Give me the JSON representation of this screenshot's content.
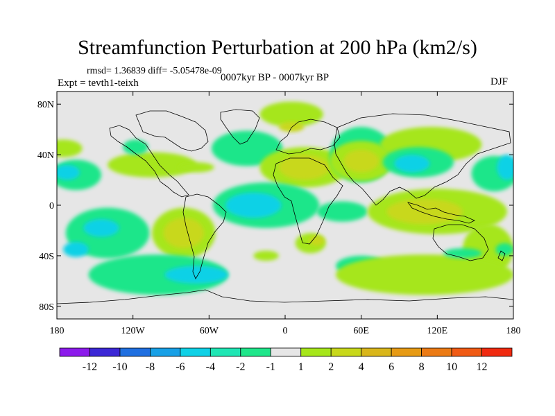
{
  "header": {
    "title": "Streamfunction Perturbation at 200 hPa (km2/s)",
    "stats": "rmsd= 1.36839 diff= -5.05478e-09",
    "experiment": "Expt = tevth1-teixh",
    "period": "0007kyr BP - 0007kyr BP",
    "season": "DJF"
  },
  "chart_data": {
    "type": "heatmap",
    "title": "Streamfunction Perturbation at 200 hPa (km2/s)",
    "subtitle": "0007kyr BP - 0007kyr BP",
    "variable": "Streamfunction Perturbation",
    "units": "km2/s",
    "level": "200 hPa",
    "xlabel": "",
    "ylabel": "",
    "xlim": [
      -180,
      180
    ],
    "ylim": [
      -90,
      90
    ],
    "x_ticks": [
      {
        "value": -180,
        "label": "180"
      },
      {
        "value": -120,
        "label": "120W"
      },
      {
        "value": -60,
        "label": "60W"
      },
      {
        "value": 0,
        "label": "0"
      },
      {
        "value": 60,
        "label": "60E"
      },
      {
        "value": 120,
        "label": "120E"
      },
      {
        "value": 180,
        "label": "180"
      }
    ],
    "y_ticks": [
      {
        "value": 80,
        "label": "80N"
      },
      {
        "value": 40,
        "label": "40N"
      },
      {
        "value": 0,
        "label": "0"
      },
      {
        "value": -40,
        "label": "40S"
      },
      {
        "value": -80,
        "label": "80S"
      }
    ],
    "colorbar": {
      "bins": [
        {
          "color": "#8c1aeb"
        },
        {
          "color": "#3c27d6"
        },
        {
          "color": "#1f6fe0"
        },
        {
          "color": "#17a0e6"
        },
        {
          "color": "#0fd1e6"
        },
        {
          "color": "#1fe6b4"
        },
        {
          "color": "#1fe68a"
        },
        {
          "color": "#e6e6e6"
        },
        {
          "color": "#a6e61a"
        },
        {
          "color": "#c8d81a"
        },
        {
          "color": "#d9b61a"
        },
        {
          "color": "#e69a14"
        },
        {
          "color": "#eb7a14"
        },
        {
          "color": "#f05a14"
        },
        {
          "color": "#f02a10"
        }
      ],
      "boundaries": [
        "-12",
        "-10",
        "-8",
        "-6",
        "-4",
        "-2",
        "-1",
        "1",
        "2",
        "4",
        "6",
        "8",
        "10",
        "12"
      ]
    },
    "regions": [
      {
        "lon": -105,
        "lat": 32,
        "rx": 35,
        "ry": 10,
        "level": 2
      },
      {
        "lon": -30,
        "lat": 45,
        "rx": 28,
        "ry": 14,
        "level": -1
      },
      {
        "lon": -165,
        "lat": 24,
        "rx": 20,
        "ry": 12,
        "level": -1
      },
      {
        "lon": -172,
        "lat": 26,
        "rx": 10,
        "ry": 6,
        "level": -2
      },
      {
        "lon": -175,
        "lat": 45,
        "rx": 15,
        "ry": 7,
        "level": 2
      },
      {
        "lon": -118,
        "lat": 46,
        "rx": 10,
        "ry": 6,
        "level": -1
      },
      {
        "lon": -70,
        "lat": 30,
        "rx": 14,
        "ry": 4,
        "level": 2
      },
      {
        "lon": 5,
        "lat": 72,
        "rx": 25,
        "ry": 10,
        "level": 2
      },
      {
        "lon": 5,
        "lat": 62,
        "rx": 10,
        "ry": 4,
        "level": 4
      },
      {
        "lon": 15,
        "lat": 30,
        "rx": 35,
        "ry": 16,
        "level": 2
      },
      {
        "lon": 15,
        "lat": 30,
        "rx": 20,
        "ry": 10,
        "level": 4
      },
      {
        "lon": 60,
        "lat": 40,
        "rx": 25,
        "ry": 22,
        "level": -1
      },
      {
        "lon": 60,
        "lat": 35,
        "rx": 25,
        "ry": 16,
        "level": 2
      },
      {
        "lon": 60,
        "lat": 35,
        "rx": 14,
        "ry": 9,
        "level": 4
      },
      {
        "lon": 115,
        "lat": 48,
        "rx": 40,
        "ry": 14,
        "level": 2
      },
      {
        "lon": 105,
        "lat": 34,
        "rx": 28,
        "ry": 12,
        "level": -1
      },
      {
        "lon": 100,
        "lat": 33,
        "rx": 14,
        "ry": 7,
        "level": -2
      },
      {
        "lon": 165,
        "lat": 25,
        "rx": 18,
        "ry": 14,
        "level": -1
      },
      {
        "lon": 175,
        "lat": 30,
        "rx": 8,
        "ry": 10,
        "level": -2
      },
      {
        "lon": -15,
        "lat": 0,
        "rx": 42,
        "ry": 18,
        "level": -1
      },
      {
        "lon": -25,
        "lat": 0,
        "rx": 22,
        "ry": 10,
        "level": -2
      },
      {
        "lon": 45,
        "lat": -5,
        "rx": 20,
        "ry": 8,
        "level": -1
      },
      {
        "lon": 120,
        "lat": -5,
        "rx": 55,
        "ry": 18,
        "level": 2
      },
      {
        "lon": 110,
        "lat": -5,
        "rx": 30,
        "ry": 10,
        "level": 4
      },
      {
        "lon": 160,
        "lat": -35,
        "rx": 20,
        "ry": 20,
        "level": 2
      },
      {
        "lon": -140,
        "lat": -22,
        "rx": 33,
        "ry": 20,
        "level": -1
      },
      {
        "lon": -145,
        "lat": -18,
        "rx": 14,
        "ry": 7,
        "level": -2
      },
      {
        "lon": -165,
        "lat": -35,
        "rx": 10,
        "ry": 6,
        "level": -2
      },
      {
        "lon": -80,
        "lat": -22,
        "rx": 25,
        "ry": 20,
        "level": 2
      },
      {
        "lon": -80,
        "lat": -22,
        "rx": 16,
        "ry": 12,
        "level": 4
      },
      {
        "lon": -100,
        "lat": -55,
        "rx": 55,
        "ry": 16,
        "level": -1
      },
      {
        "lon": -70,
        "lat": -55,
        "rx": 25,
        "ry": 7,
        "level": -2
      },
      {
        "lon": -15,
        "lat": -40,
        "rx": 10,
        "ry": 4,
        "level": 2
      },
      {
        "lon": 20,
        "lat": -30,
        "rx": 12,
        "ry": 8,
        "level": 2
      },
      {
        "lon": 25,
        "lat": -28,
        "rx": 6,
        "ry": 4,
        "level": 4
      },
      {
        "lon": 60,
        "lat": -48,
        "rx": 20,
        "ry": 8,
        "level": -1
      },
      {
        "lon": 110,
        "lat": -55,
        "rx": 70,
        "ry": 16,
        "level": 2
      },
      {
        "lon": 140,
        "lat": -38,
        "rx": 15,
        "ry": 4,
        "level": -1
      },
      {
        "lon": 173,
        "lat": -35,
        "rx": 7,
        "ry": 5,
        "level": -1
      }
    ]
  }
}
